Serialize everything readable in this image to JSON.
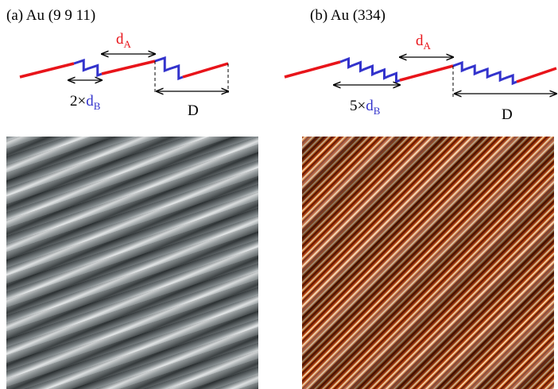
{
  "panels": [
    {
      "label": "(a) Au (9 9 11)",
      "terrace": {
        "symbol": "d",
        "subscript": "A"
      },
      "step": {
        "prefix": "2×",
        "symbol": "d",
        "subscript": "B"
      },
      "period": "D"
    },
    {
      "label": "(b) Au (334)",
      "terrace": {
        "symbol": "d",
        "subscript": "A"
      },
      "step": {
        "prefix": "5×",
        "symbol": "d",
        "subscript": "B"
      },
      "period": "D"
    }
  ]
}
